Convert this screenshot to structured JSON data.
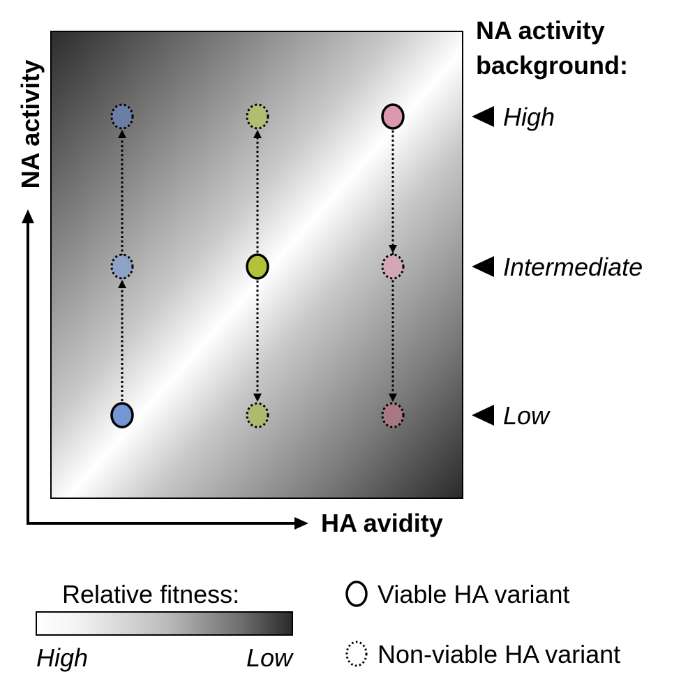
{
  "axes": {
    "y_label": "NA activity",
    "x_label": "HA avidity"
  },
  "background_legend": {
    "title_line1": "NA activity",
    "title_line2": "background:",
    "levels": [
      "High",
      "Intermediate",
      "Low"
    ]
  },
  "fitness_legend": {
    "title": "Relative fitness:",
    "left_label": "High",
    "right_label": "Low",
    "gradient_colors": [
      "#ffffff",
      "#2a2a2a"
    ]
  },
  "variant_legend": {
    "viable_label": "Viable HA variant",
    "nonviable_label": "Non-viable HA variant"
  },
  "columns": [
    {
      "name": "blue",
      "color": "#7496d4",
      "nodes": [
        {
          "level": "High",
          "viable": false,
          "fill": "#6b7fa6"
        },
        {
          "level": "Intermediate",
          "viable": false,
          "fill": "#8ea2c6"
        },
        {
          "level": "Low",
          "viable": true,
          "fill": "#7496d4"
        }
      ]
    },
    {
      "name": "green",
      "color": "#b2c23a",
      "nodes": [
        {
          "level": "High",
          "viable": false,
          "fill": "#b1bd72"
        },
        {
          "level": "Intermediate",
          "viable": true,
          "fill": "#b2c23a"
        },
        {
          "level": "Low",
          "viable": false,
          "fill": "#aebb6e"
        }
      ]
    },
    {
      "name": "pink",
      "color": "#dc98b0",
      "nodes": [
        {
          "level": "High",
          "viable": true,
          "fill": "#dc98b0"
        },
        {
          "level": "Intermediate",
          "viable": false,
          "fill": "#d2a8b6"
        },
        {
          "level": "Low",
          "viable": false,
          "fill": "#a87885"
        }
      ]
    }
  ]
}
